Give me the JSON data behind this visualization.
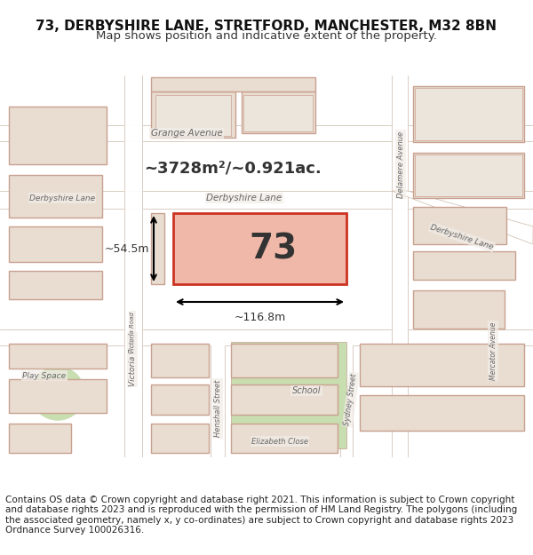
{
  "title_line1": "73, DERBYSHIRE LANE, STRETFORD, MANCHESTER, M32 8BN",
  "title_line2": "Map shows position and indicative extent of the property.",
  "footer_text": "Contains OS data © Crown copyright and database right 2021. This information is subject to Crown copyright and database rights 2023 and is reproduced with the permission of HM Land Registry. The polygons (including the associated geometry, namely x, y co-ordinates) are subject to Crown copyright and database rights 2023 Ordnance Survey 100026316.",
  "map_bg": "#f2ede8",
  "building_fill": "#e8ddd0",
  "building_stroke": "#c9a090",
  "road_color": "#ffffff",
  "road_stroke": "#cbb8a8",
  "highlight_fill": "#f0b8a8",
  "highlight_stroke": "#cc3322",
  "green_fill": "#c8ddb0",
  "text_color_dark": "#333333",
  "text_color_label": "#666666",
  "property_number": "73",
  "area_text": "~3728m²/~0.921ac.",
  "dim_width": "~116.8m",
  "dim_height": "~54.5m",
  "title_fontsize": 11,
  "subtitle_fontsize": 9.5,
  "footer_fontsize": 7.5,
  "label_fontsize": 7.5,
  "property_num_fontsize": 28
}
